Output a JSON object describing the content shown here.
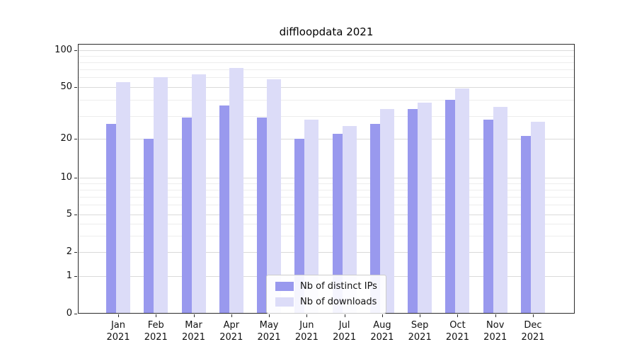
{
  "chart_data": {
    "type": "bar",
    "title": "diffloopdata 2021",
    "categories": [
      "Jan",
      "Feb",
      "Mar",
      "Apr",
      "May",
      "Jun",
      "Jul",
      "Aug",
      "Sep",
      "Oct",
      "Nov",
      "Dec"
    ],
    "category_year": "2021",
    "y_scale": "symlog",
    "y_ticks": [
      0,
      1,
      2,
      5,
      10,
      20,
      50,
      100
    ],
    "ylim": [
      0,
      110
    ],
    "grid": true,
    "legend_position": "lower center",
    "series": [
      {
        "name": "Nb of distinct IPs",
        "color": "#9999ee",
        "values": [
          26,
          20,
          29,
          36,
          29,
          20,
          22,
          26,
          34,
          40,
          28,
          21
        ]
      },
      {
        "name": "Nb of downloads",
        "color": "#dcdcf8",
        "values": [
          55,
          60,
          64,
          72,
          58,
          28,
          25,
          34,
          38,
          49,
          35,
          27
        ]
      }
    ]
  }
}
